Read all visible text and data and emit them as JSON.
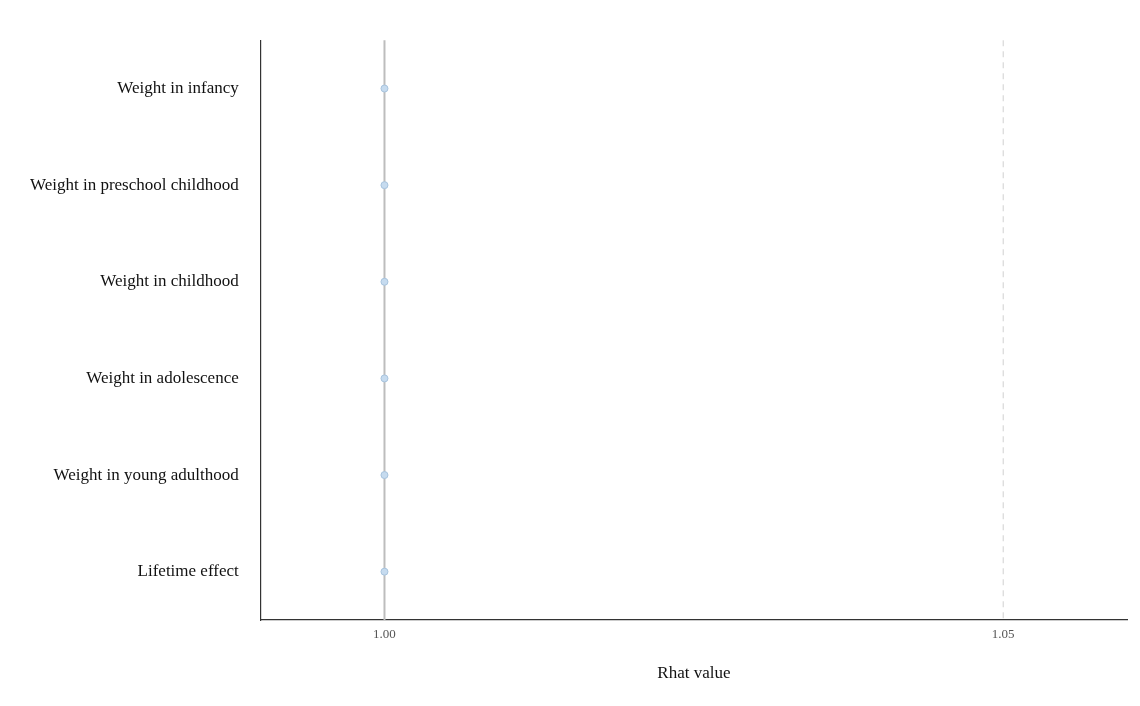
{
  "chart_data": {
    "type": "scatter",
    "orientation": "horizontal",
    "xlabel": "Rhat value",
    "categories": [
      "Weight in infancy",
      "Weight in preschool childhood",
      "Weight in childhood",
      "Weight in adolescence",
      "Weight in young adulthood",
      "Lifetime effect"
    ],
    "values": [
      1.0,
      1.0,
      1.0,
      1.0,
      1.0,
      1.0
    ],
    "color": "#c6dbef",
    "marker": "circle",
    "xlim": [
      0.99,
      1.06
    ],
    "xticks": [
      {
        "value": 1.0,
        "label": "1.00"
      },
      {
        "value": 1.05,
        "label": "1.05"
      }
    ],
    "ref_lines": [
      {
        "axis": "x",
        "value": 1.0,
        "color": "#bdbdbd",
        "line_style": "solid"
      },
      {
        "axis": "x",
        "value": 1.05,
        "color": "#d9d9d9",
        "line_style": "dashed"
      }
    ],
    "grid": false,
    "legend": false
  }
}
